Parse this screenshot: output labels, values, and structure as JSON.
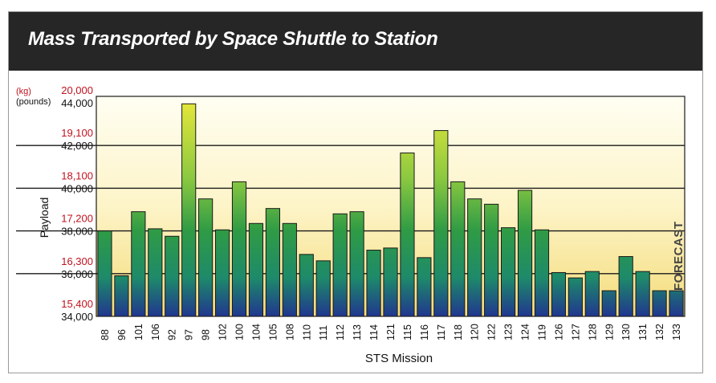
{
  "chart_data": {
    "type": "bar",
    "title": "Mass Transported by Space Shuttle to Station",
    "xlabel": "STS Mission",
    "ylabel": "Payload",
    "unit_kg_label": "(kg)",
    "unit_lb_label": "(pounds)",
    "y_ticks_kg": [
      "20,000",
      "19,100",
      "18,100",
      "17,200",
      "16,300",
      "15,400"
    ],
    "y_ticks_lb": [
      "44,000",
      "42,000",
      "40,000",
      "38,000",
      "36,000",
      "34,000"
    ],
    "ylim_pounds": [
      34000,
      44000
    ],
    "categories": [
      "88",
      "96",
      "101",
      "106",
      "92",
      "97",
      "98",
      "102",
      "100",
      "104",
      "105",
      "108",
      "110",
      "111",
      "112",
      "113",
      "114",
      "121",
      "115",
      "116",
      "117",
      "118",
      "120",
      "122",
      "123",
      "124",
      "119",
      "126",
      "127",
      "128",
      "129",
      "130",
      "131",
      "132",
      "133"
    ],
    "values": [
      38000,
      35900,
      38900,
      38100,
      37750,
      43950,
      39500,
      38050,
      40300,
      38350,
      39050,
      38350,
      36900,
      36600,
      38800,
      38900,
      37100,
      37200,
      41650,
      36750,
      42700,
      40300,
      39500,
      39250,
      38150,
      39900,
      38050,
      36050,
      35800,
      36100,
      35200,
      36800,
      36100,
      35200,
      35200
    ],
    "forecast_label": "FORECAST",
    "forecast_from_index": 33,
    "grid": true,
    "colors": {
      "kg_tick": "#c0121e",
      "bar_top": "#dde23a",
      "bar_mid": "#2f9b45",
      "bar_bottom": "#20368f",
      "header_bg": "#262626",
      "plot_bg_top": "#fffef2",
      "plot_bg_bottom": "#f4dc7a"
    }
  }
}
